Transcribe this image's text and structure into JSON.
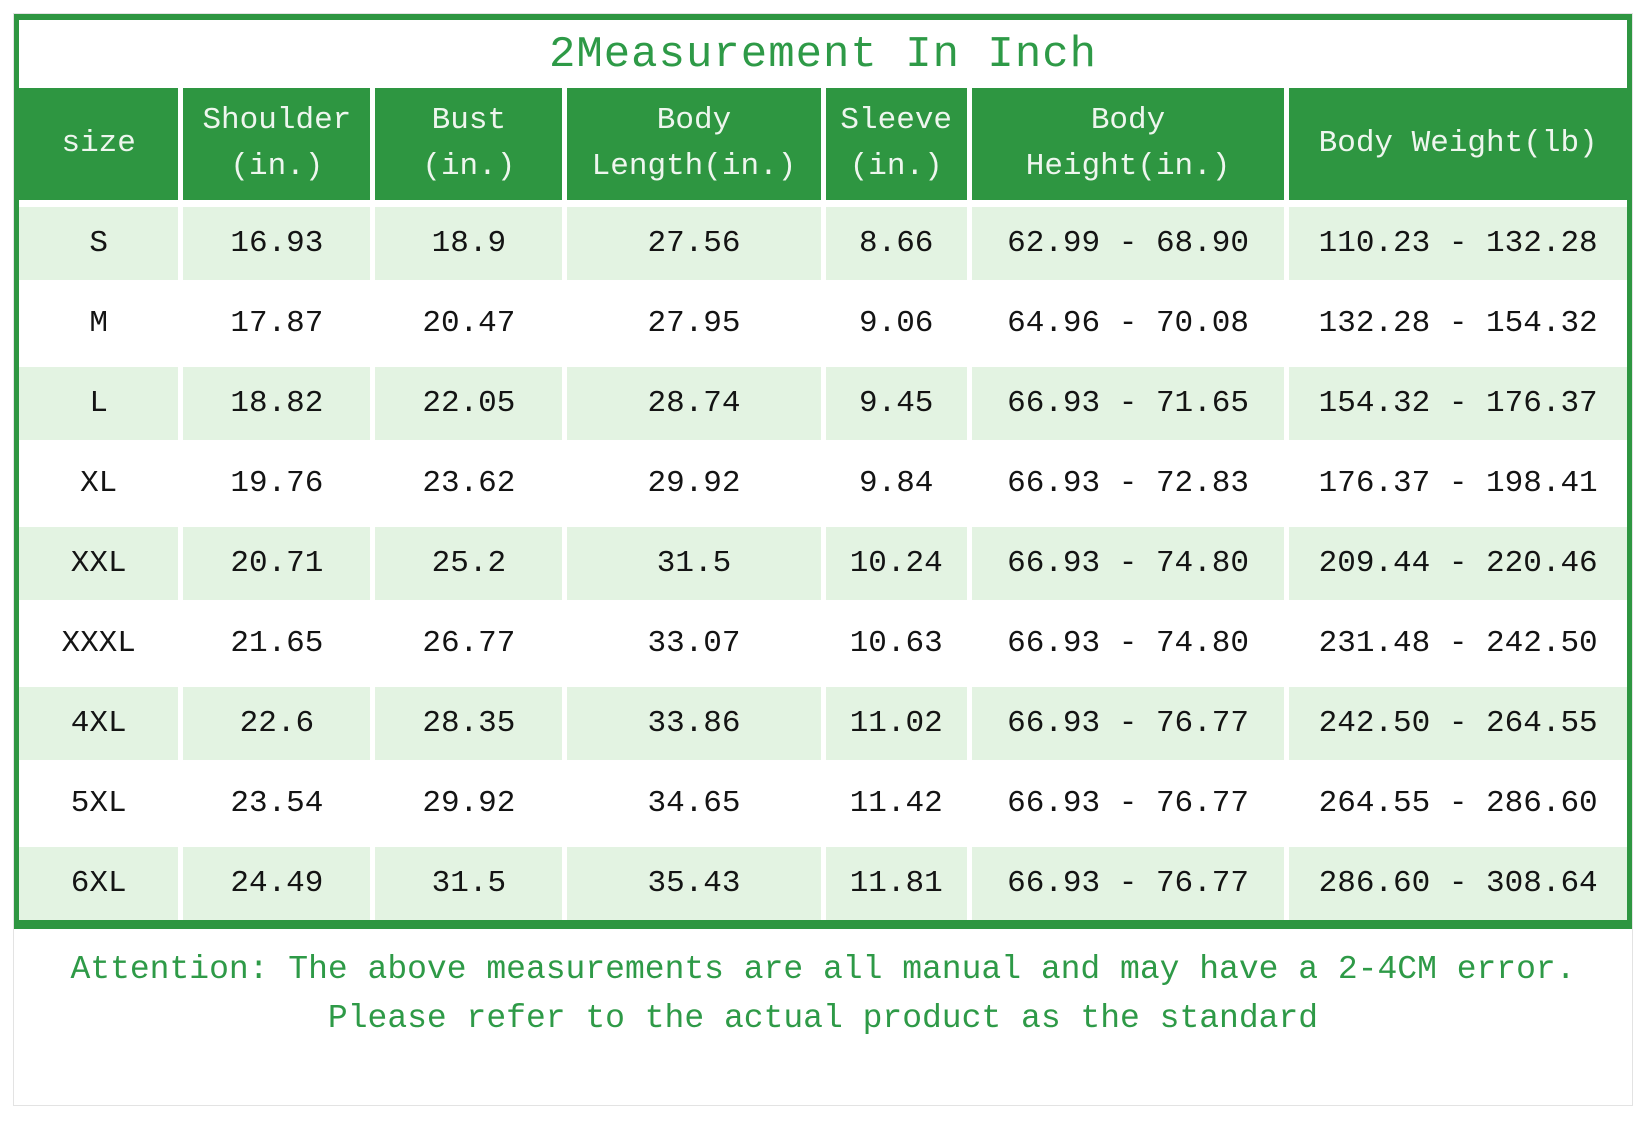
{
  "title": "2Measurement In Inch",
  "chart_data": {
    "type": "table",
    "title": "2Measurement In Inch",
    "columns": [
      "size",
      "Shoulder\n(in.)",
      "Bust\n(in.)",
      "Body\nLength(in.)",
      "Sleeve\n(in.)",
      "Body\nHeight(in.)",
      "Body Weight(lb)"
    ],
    "rows": [
      [
        "S",
        "16.93",
        "18.9",
        "27.56",
        "8.66",
        "62.99 - 68.90",
        "110.23 - 132.28"
      ],
      [
        "M",
        "17.87",
        "20.47",
        "27.95",
        "9.06",
        "64.96 - 70.08",
        "132.28 - 154.32"
      ],
      [
        "L",
        "18.82",
        "22.05",
        "28.74",
        "9.45",
        "66.93 - 71.65",
        "154.32 - 176.37"
      ],
      [
        "XL",
        "19.76",
        "23.62",
        "29.92",
        "9.84",
        "66.93 - 72.83",
        "176.37 - 198.41"
      ],
      [
        "XXL",
        "20.71",
        "25.2",
        "31.5",
        "10.24",
        "66.93 - 74.80",
        "209.44 - 220.46"
      ],
      [
        "XXXL",
        "21.65",
        "26.77",
        "33.07",
        "10.63",
        "66.93 - 74.80",
        "231.48 - 242.50"
      ],
      [
        "4XL",
        "22.6",
        "28.35",
        "33.86",
        "11.02",
        "66.93 - 76.77",
        "242.50 - 264.55"
      ],
      [
        "5XL",
        "23.54",
        "29.92",
        "34.65",
        "11.42",
        "66.93 - 76.77",
        "264.55 - 286.60"
      ],
      [
        "6XL",
        "24.49",
        "31.5",
        "35.43",
        "11.81",
        "66.93 - 76.77",
        "286.60 - 308.64"
      ]
    ]
  },
  "note": {
    "line1": "Attention: The above measurements are all manual and may have a 2-4CM error.",
    "line2": "Please refer to the actual product as the standard"
  },
  "colors": {
    "header_green": "#2e9641",
    "row_light_green": "#e3f3e2",
    "accent_text_green": "#2e9a47"
  }
}
